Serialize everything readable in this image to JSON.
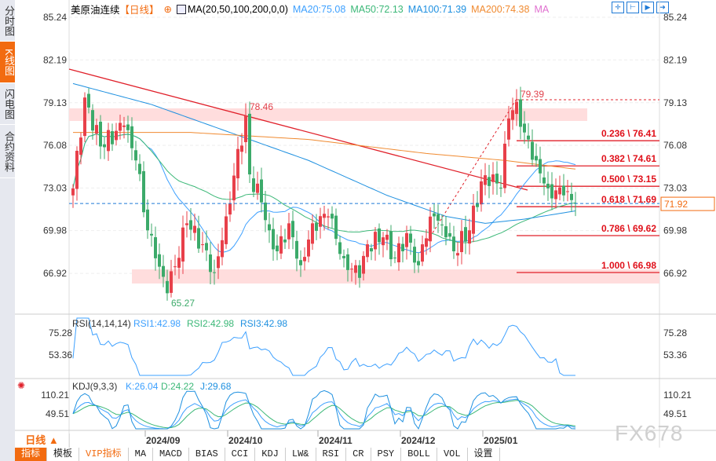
{
  "sidebar": [
    {
      "label": "分时图"
    },
    {
      "label": "K线图",
      "active": true
    },
    {
      "label": "闪电图"
    },
    {
      "label": "合约资料"
    }
  ],
  "header": {
    "symbol": "美原油连续",
    "period": "【日线】",
    "ma_label": "MA(20,50,100,200,0,0)",
    "ma20": "MA20:75.08",
    "ma50": "MA50:72.13",
    "ma100": "MA100:71.39",
    "ma200": "MA200:74.38",
    "ma": "MA"
  },
  "colors": {
    "ma20": "#3da0ff",
    "ma50": "#3cb878",
    "ma100": "#1e90e0",
    "ma200": "#f08a30",
    "up": "#e8404a",
    "down": "#3caa6a",
    "accent": "#f26b10"
  },
  "price_axis": [
    "85.24",
    "82.19",
    "79.13",
    "76.08",
    "73.03",
    "69.98",
    "66.92"
  ],
  "price_ticks": [
    85.24,
    82.19,
    79.13,
    76.08,
    73.03,
    69.98,
    66.92
  ],
  "annotations": {
    "high1": "78.46",
    "high2": "79.39",
    "low": "65.27",
    "current": "71.92"
  },
  "fib": [
    {
      "label": "0.236 \\ 76.41",
      "v": 76.41
    },
    {
      "label": "0.382 \\ 74.61",
      "v": 74.61
    },
    {
      "label": "0.500 \\ 73.15",
      "v": 73.15
    },
    {
      "label": "0.618 \\ 71.69",
      "v": 71.69
    },
    {
      "label": "0.786 \\ 69.62",
      "v": 69.62
    },
    {
      "label": "1.000 \\ 66.98",
      "v": 66.98
    }
  ],
  "price_keypoints": [
    [
      0,
      73
    ],
    [
      3,
      79.5
    ],
    [
      7,
      76
    ],
    [
      13,
      77.5
    ],
    [
      16,
      75
    ],
    [
      19,
      70
    ],
    [
      21,
      68
    ],
    [
      24,
      65.5
    ],
    [
      29,
      70.5
    ],
    [
      33,
      69
    ],
    [
      36,
      67
    ],
    [
      39,
      71
    ],
    [
      44,
      78.2
    ],
    [
      45,
      74
    ],
    [
      48,
      72
    ],
    [
      50,
      70
    ],
    [
      52,
      68.5
    ],
    [
      55,
      70.5
    ],
    [
      58,
      67.5
    ],
    [
      61,
      70.5
    ],
    [
      65,
      71
    ],
    [
      69,
      68
    ],
    [
      73,
      66.6
    ],
    [
      75,
      69
    ],
    [
      79,
      69.5
    ],
    [
      82,
      68
    ],
    [
      85,
      69.8
    ],
    [
      88,
      67.5
    ],
    [
      89,
      69
    ],
    [
      92,
      71
    ],
    [
      95,
      69.5
    ],
    [
      97,
      68.5
    ],
    [
      101,
      70
    ],
    [
      104,
      73.5
    ],
    [
      107,
      74
    ],
    [
      109,
      73
    ],
    [
      111,
      78
    ],
    [
      113,
      79.2
    ],
    [
      115,
      77
    ],
    [
      118,
      75
    ],
    [
      121,
      73
    ],
    [
      125,
      72.5
    ],
    [
      128,
      71.92
    ]
  ],
  "ma100_path": [
    [
      0,
      80.5
    ],
    [
      20,
      79
    ],
    [
      40,
      77
    ],
    [
      60,
      75
    ],
    [
      80,
      72.5
    ],
    [
      95,
      71
    ],
    [
      105,
      70.5
    ],
    [
      115,
      70.8
    ],
    [
      128,
      71.39
    ]
  ],
  "ma200_path": [
    [
      0,
      77
    ],
    [
      30,
      77
    ],
    [
      60,
      76.5
    ],
    [
      90,
      75.5
    ],
    [
      110,
      75
    ],
    [
      128,
      74.38
    ]
  ],
  "rsi": {
    "label": "RSI(14,14,14)",
    "r1": "RSI1:42.98",
    "r2": "RSI2:42.98",
    "r3": "RSI3:42.98",
    "axis": [
      "75.28",
      "53.36"
    ]
  },
  "kdj": {
    "label": "KDJ(9,3,3)",
    "k": "K:26.04",
    "d": "D:24.22",
    "j": "J:29.68",
    "axis": [
      "110.21",
      "49.51"
    ]
  },
  "dates": [
    "2024/09",
    "2024/10",
    "2024/11",
    "2024/12",
    "2025/01"
  ],
  "period_button": "日线 ▲",
  "bottom_tabs": [
    "指标",
    "模板",
    "VIP指标",
    "MA",
    "MACD",
    "BIAS",
    "CCI",
    "KDJ",
    "LW&",
    "RSI",
    "CR",
    "PSY",
    "BOLL",
    "VOL",
    "设置"
  ],
  "watermark": "FX678"
}
